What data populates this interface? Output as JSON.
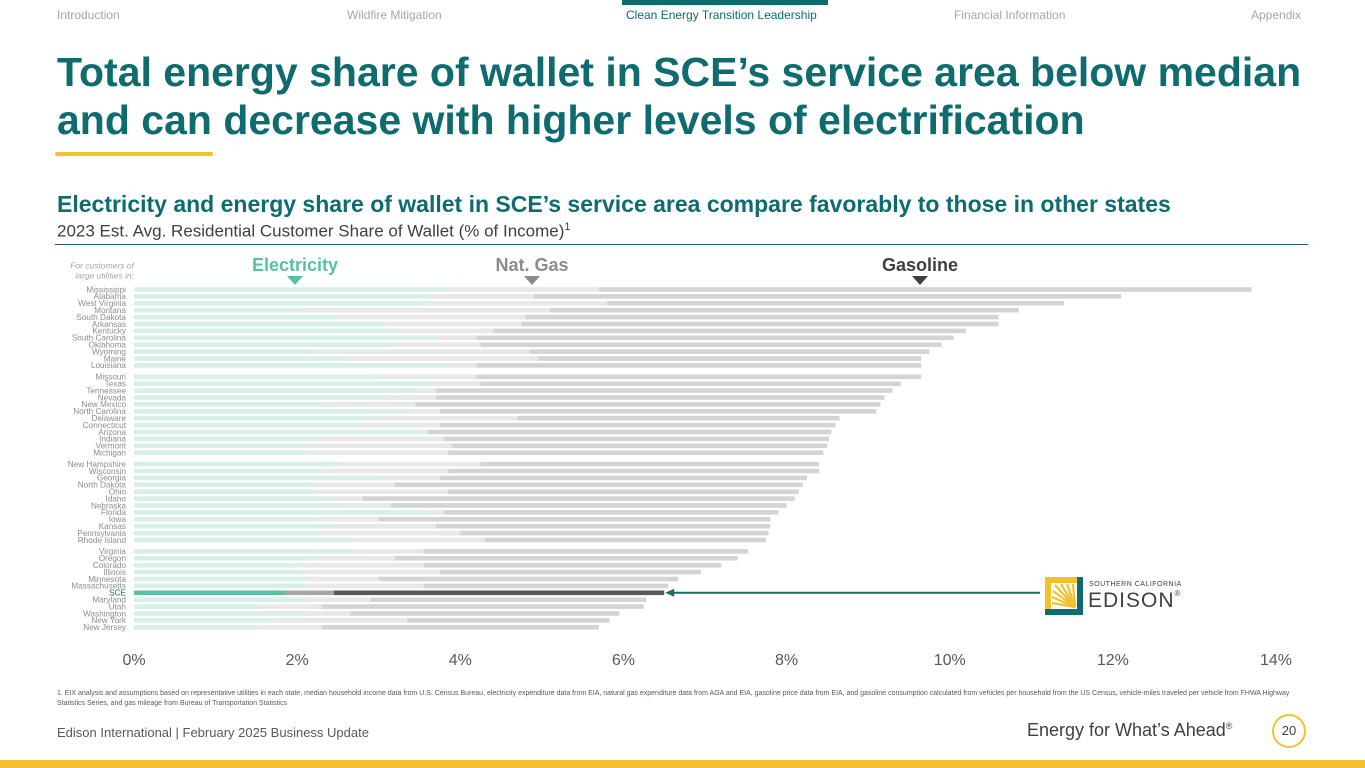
{
  "nav": {
    "items": [
      "Introduction",
      "Wildfire Mitigation",
      "Clean Energy Transition Leadership",
      "Financial Information",
      "Appendix"
    ],
    "active_index": 2
  },
  "title": "Total energy share of wallet in SCE’s service area below median and can decrease with higher levels of electrification",
  "subtitle": "Electricity and energy share of wallet in SCE’s service area compare favorably to those in other states",
  "subtitle2": "2023 Est. Avg. Residential Customer Share of Wallet (% of Income)",
  "subtitle2_sup": "1",
  "chart_data": {
    "type": "bar",
    "stacked": true,
    "orientation": "horizontal",
    "row_header": "For customers of large utilities in:",
    "series": [
      {
        "name": "Electricity",
        "color": "#d8efe8",
        "highlight_color": "#5bbfa6"
      },
      {
        "name": "Nat. Gas",
        "color": "#e8e8e8",
        "highlight_color": "#a6a6a6"
      },
      {
        "name": "Gasoline",
        "color": "#d4d4d4",
        "highlight_color": "#595959"
      }
    ],
    "header_colors": [
      "#5bbfa6",
      "#8c8c8c",
      "#404040"
    ],
    "highlight": "SCE",
    "xlim": [
      0,
      14
    ],
    "xticks": [
      "0%",
      "2%",
      "4%",
      "6%",
      "8%",
      "10%",
      "12%",
      "14%"
    ],
    "groups": [
      [
        {
          "state": "Mississippi",
          "electricity": 3.9,
          "gas": 1.8,
          "gasoline": 8.0
        },
        {
          "state": "Alabama",
          "electricity": 3.7,
          "gas": 1.2,
          "gasoline": 7.2
        },
        {
          "state": "West Virginia",
          "electricity": 3.6,
          "gas": 2.2,
          "gasoline": 5.6
        },
        {
          "state": "Montana",
          "electricity": 2.0,
          "gas": 3.1,
          "gasoline": 5.75
        },
        {
          "state": "South Dakota",
          "electricity": 2.5,
          "gas": 2.3,
          "gasoline": 5.8
        },
        {
          "state": "Arkansas",
          "electricity": 3.1,
          "gas": 1.65,
          "gasoline": 5.85
        },
        {
          "state": "Kentucky",
          "electricity": 3.3,
          "gas": 1.1,
          "gasoline": 5.8
        },
        {
          "state": "South Carolina",
          "electricity": 3.7,
          "gas": 0.5,
          "gasoline": 5.85
        },
        {
          "state": "Oklahoma",
          "electricity": 3.2,
          "gas": 1.05,
          "gasoline": 5.65
        },
        {
          "state": "Wyoming",
          "electricity": 2.2,
          "gas": 2.65,
          "gasoline": 4.9
        },
        {
          "state": "Maine",
          "electricity": 2.6,
          "gas": 2.35,
          "gasoline": 4.7
        },
        {
          "state": "Louisiana",
          "electricity": 3.8,
          "gas": 0.4,
          "gasoline": 5.45
        }
      ],
      [
        {
          "state": "Missouri",
          "electricity": 3.0,
          "gas": 1.2,
          "gasoline": 5.45
        },
        {
          "state": "Texas",
          "electricity": 3.6,
          "gas": 0.65,
          "gasoline": 5.15
        },
        {
          "state": "Tennessee",
          "electricity": 3.5,
          "gas": 0.2,
          "gasoline": 5.6
        },
        {
          "state": "Nevada",
          "electricity": 3.1,
          "gas": 0.6,
          "gasoline": 5.5
        },
        {
          "state": "New Mexico",
          "electricity": 2.3,
          "gas": 1.15,
          "gasoline": 5.7
        },
        {
          "state": "North Carolina",
          "electricity": 3.3,
          "gas": 0.45,
          "gasoline": 5.35
        },
        {
          "state": "Delaware",
          "electricity": 3.0,
          "gas": 1.7,
          "gasoline": 3.95
        },
        {
          "state": "Connecticut",
          "electricity": 2.8,
          "gas": 0.95,
          "gasoline": 4.85
        },
        {
          "state": "Arizona",
          "electricity": 3.55,
          "gas": 0.05,
          "gasoline": 4.95
        },
        {
          "state": "Indiana",
          "electricity": 2.3,
          "gas": 1.5,
          "gasoline": 4.72
        },
        {
          "state": "Vermont",
          "electricity": 2.1,
          "gas": 1.8,
          "gasoline": 4.6
        },
        {
          "state": "Michigan",
          "electricity": 2.1,
          "gas": 1.75,
          "gasoline": 4.6
        }
      ],
      [
        {
          "state": "New Hampshire",
          "electricity": 2.5,
          "gas": 1.75,
          "gasoline": 4.15
        },
        {
          "state": "Wisconsin",
          "electricity": 2.3,
          "gas": 1.55,
          "gasoline": 4.55
        },
        {
          "state": "Georgia",
          "electricity": 3.0,
          "gas": 0.75,
          "gasoline": 4.5
        },
        {
          "state": "North Dakota",
          "electricity": 2.2,
          "gas": 1.0,
          "gasoline": 5.0
        },
        {
          "state": "Ohio",
          "electricity": 2.2,
          "gas": 1.65,
          "gasoline": 4.3
        },
        {
          "state": "Idaho",
          "electricity": 2.4,
          "gas": 0.4,
          "gasoline": 5.3
        },
        {
          "state": "Nebraska",
          "electricity": 2.6,
          "gas": 0.55,
          "gasoline": 4.85
        },
        {
          "state": "Florida",
          "electricity": 3.6,
          "gas": 0.2,
          "gasoline": 4.1
        },
        {
          "state": "Iowa",
          "electricity": 2.2,
          "gas": 0.8,
          "gasoline": 4.8
        },
        {
          "state": "Kansas",
          "electricity": 2.5,
          "gas": 1.2,
          "gasoline": 4.1
        },
        {
          "state": "Pennsylvania",
          "electricity": 2.3,
          "gas": 1.7,
          "gasoline": 3.78
        },
        {
          "state": "Rhode Island",
          "electricity": 2.7,
          "gas": 1.6,
          "gasoline": 3.45
        }
      ],
      [
        {
          "state": "Virginia",
          "electricity": 2.7,
          "gas": 0.85,
          "gasoline": 3.98
        },
        {
          "state": "Oregon",
          "electricity": 2.2,
          "gas": 1.0,
          "gasoline": 4.2
        },
        {
          "state": "Colorado",
          "electricity": 2.0,
          "gas": 1.55,
          "gasoline": 3.65
        },
        {
          "state": "Illinois",
          "electricity": 2.1,
          "gas": 1.65,
          "gasoline": 3.2
        },
        {
          "state": "Minnesota",
          "electricity": 2.1,
          "gas": 0.9,
          "gasoline": 3.67
        },
        {
          "state": "Massachusetts",
          "electricity": 2.1,
          "gas": 1.45,
          "gasoline": 3.0
        },
        {
          "state": "SCE",
          "electricity": 1.85,
          "gas": 0.6,
          "gasoline": 4.05
        },
        {
          "state": "Maryland",
          "electricity": 2.1,
          "gas": 0.8,
          "gasoline": 3.38
        },
        {
          "state": "Utah",
          "electricity": 1.5,
          "gas": 0.8,
          "gasoline": 3.95
        },
        {
          "state": "Washington",
          "electricity": 2.1,
          "gas": 0.55,
          "gasoline": 3.3
        },
        {
          "state": "New York",
          "electricity": 1.7,
          "gas": 1.65,
          "gasoline": 2.48
        },
        {
          "state": "New Jersey",
          "electricity": 1.5,
          "gas": 0.8,
          "gasoline": 3.4
        }
      ]
    ]
  },
  "logo": {
    "small_text": "SOUTHERN CALIFORNIA",
    "big_text": "EDISON",
    "reg_mark": "®"
  },
  "footnote": "1.   EIX analysis and assumptions based on representative utilities in each state, median household income data from U.S. Census Bureau, electricity expenditure data from EIA, natural gas expenditure data from AGA and EIA, gasoline price data from EIA, and gasoline consumption calculated from vehicles per household from the US Census, vehicle-miles traveled per vehicle from FHWA Highway Statistics Series, and gas mileage from Bureau of Transportation Statistics",
  "footer": {
    "left": "Edison International |  February 2025 Business Update",
    "right": "Energy for What’s Ahead",
    "right_sup": "®",
    "page": "20"
  },
  "colors": {
    "teal": "#0f6b6e",
    "gold": "#f2c12e",
    "arrow": "#1f6b5e"
  }
}
